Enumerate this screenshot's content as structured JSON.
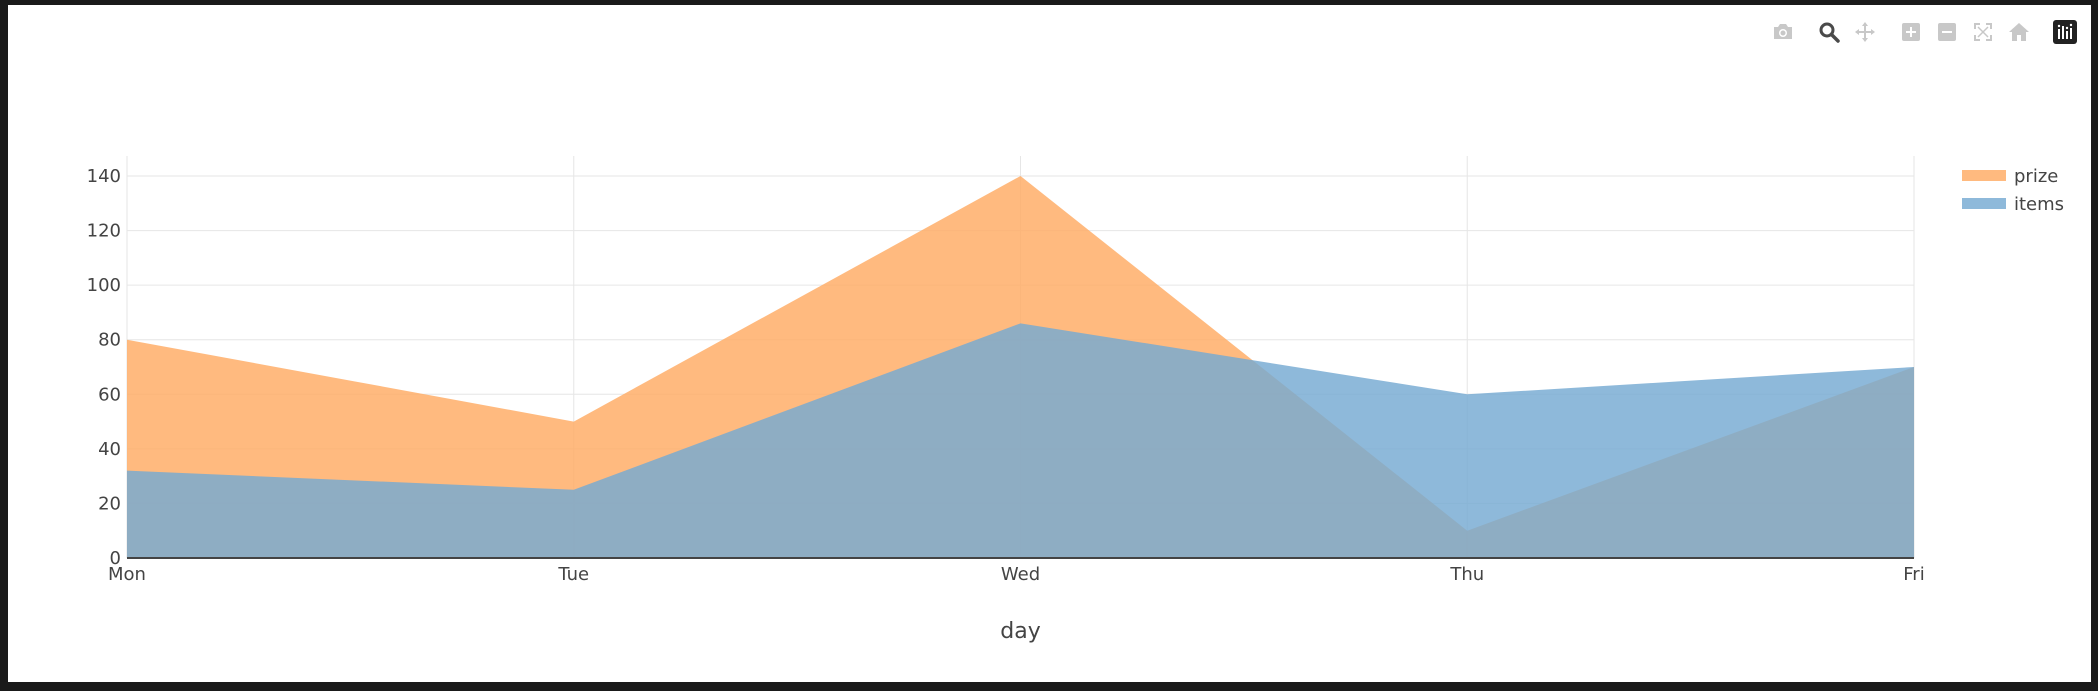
{
  "toolbar": {
    "buttons": [
      {
        "name": "camera-icon",
        "title": "Download plot as a png"
      },
      {
        "name": "zoom-icon",
        "title": "Zoom"
      },
      {
        "name": "pan-icon",
        "title": "Pan"
      },
      {
        "name": "zoom-in-icon",
        "title": "Zoom in"
      },
      {
        "name": "zoom-out-icon",
        "title": "Zoom out"
      },
      {
        "name": "autoscale-icon",
        "title": "Autoscale"
      },
      {
        "name": "home-icon",
        "title": "Reset axes"
      },
      {
        "name": "plotly-logo-icon",
        "title": "Produced with Plotly"
      }
    ]
  },
  "colors": {
    "prize": "#ffab63",
    "items": "#75a9d2",
    "grid": "#e6e6e6",
    "axis_line": "#444444",
    "text": "#444444"
  },
  "chart_data": {
    "type": "area",
    "categories": [
      "Mon",
      "Tue",
      "Wed",
      "Thu",
      "Fri"
    ],
    "series": [
      {
        "name": "prize",
        "values": [
          80,
          50,
          140,
          10,
          70
        ]
      },
      {
        "name": "items",
        "values": [
          32,
          25,
          86,
          60,
          70
        ]
      }
    ],
    "xlabel": "day",
    "ylabel": "",
    "ylim": [
      0,
      140
    ],
    "yticks": [
      0,
      20,
      40,
      60,
      80,
      100,
      120,
      140
    ],
    "grid": true,
    "legend": {
      "position": "top-right",
      "entries": [
        "prize",
        "items"
      ]
    }
  }
}
